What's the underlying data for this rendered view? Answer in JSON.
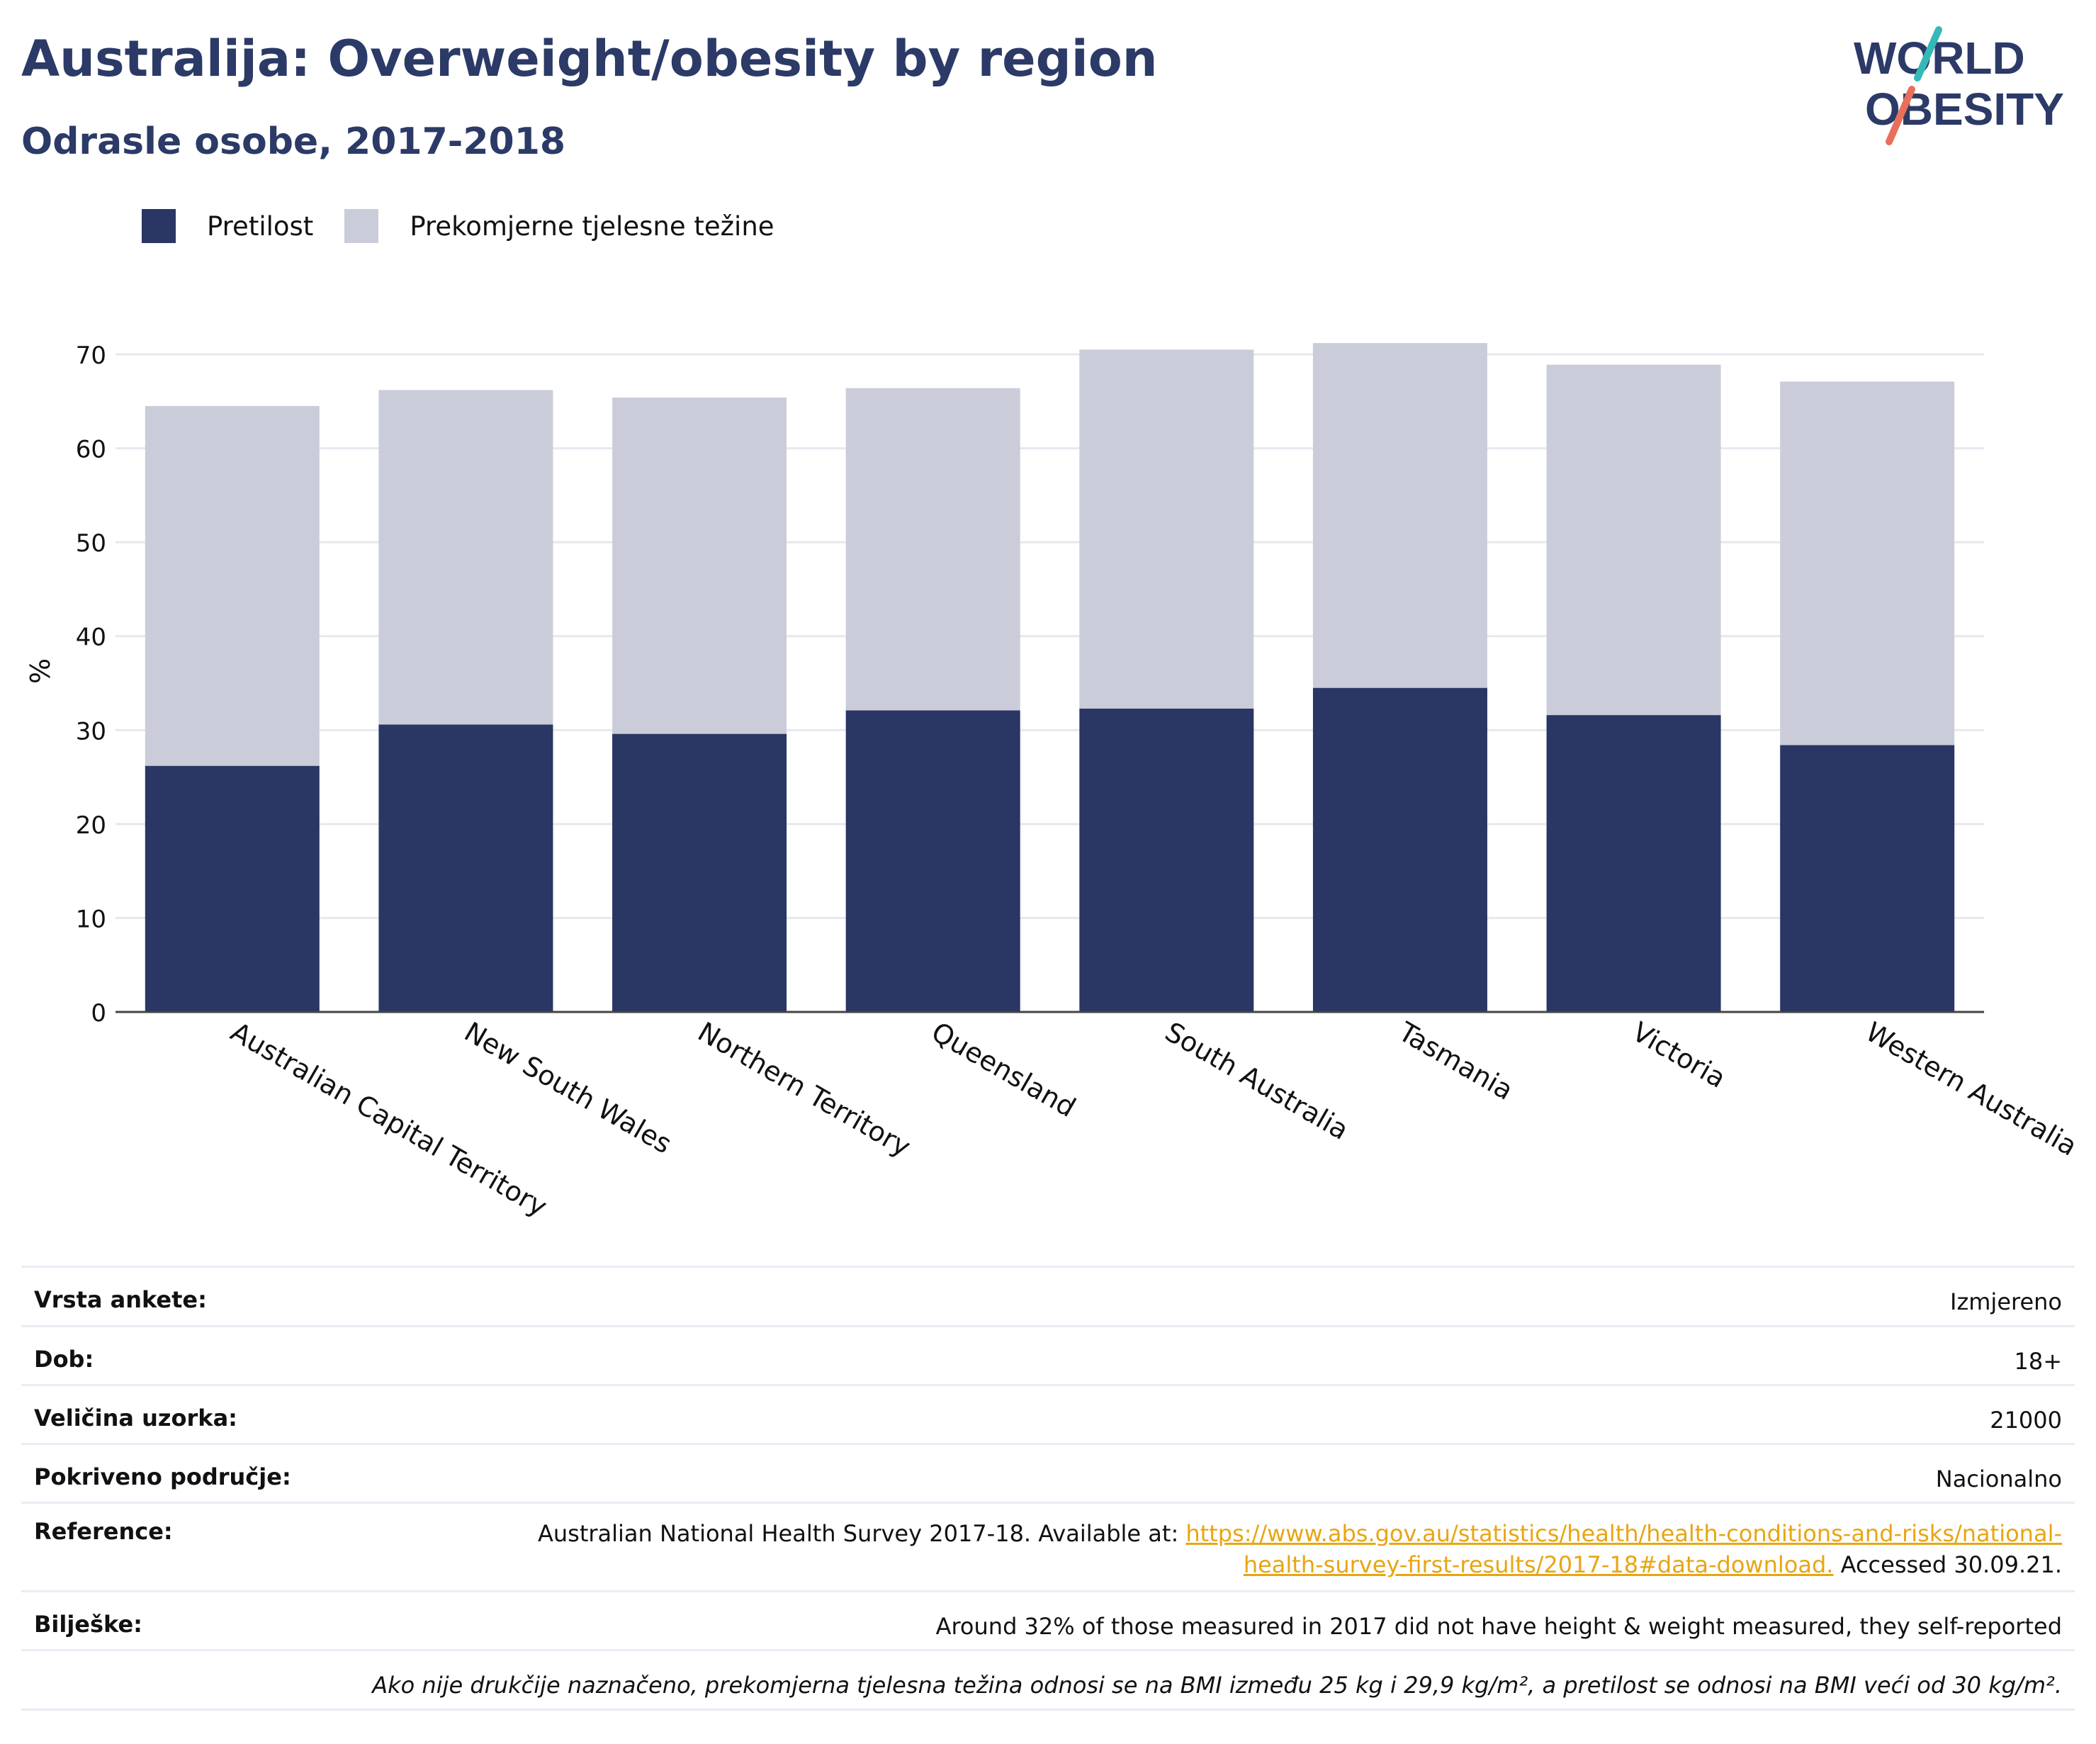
{
  "header": {
    "title": "Australija: Overweight/obesity by region",
    "subtitle": "Odrasle osobe, 2017-2018"
  },
  "logo": {
    "line1": "WORLD",
    "line2": "OBESITY"
  },
  "colors": {
    "obesity": "#2a3663",
    "overweight": "#cacdd9",
    "title": "#2b3a67",
    "link": "#e8a513"
  },
  "chart_data": {
    "type": "bar",
    "stacked": true,
    "categories": [
      "Australian Capital Territory",
      "New South Wales",
      "Northern Territory",
      "Queensland",
      "South Australia",
      "Tasmania",
      "Victoria",
      "Western Australia"
    ],
    "series": [
      {
        "name": "Pretilost",
        "values": [
          26.2,
          30.6,
          29.6,
          32.1,
          32.3,
          34.5,
          31.6,
          28.4
        ]
      },
      {
        "name": "Prekomjerne tjelesne težine",
        "values": [
          38.3,
          35.6,
          35.8,
          34.3,
          38.2,
          36.7,
          37.3,
          38.7
        ]
      }
    ],
    "ylabel": "%",
    "xlabel": "",
    "ylim": [
      0,
      70
    ],
    "yticks": [
      0,
      10,
      20,
      30,
      40,
      50,
      60,
      70
    ],
    "grid": true,
    "legend": "top-left"
  },
  "info": {
    "survey_type": {
      "label": "Vrsta ankete:",
      "value": "Izmjereno"
    },
    "age": {
      "label": "Dob:",
      "value": "18+"
    },
    "sample_size": {
      "label": "Veličina uzorka:",
      "value": "21000"
    },
    "area": {
      "label": "Pokriveno područje:",
      "value": "Nacionalno"
    },
    "reference": {
      "label": "Reference:",
      "text_before": "Australian National Health Survey 2017-18. Available at: ",
      "link_line1": "https://www.abs.gov.au/statistics/health/health-conditions-and-risks/national-",
      "link_line2": "health-survey-first-results/2017-18#data-download.",
      "text_after": " Accessed 30.09.21."
    },
    "notes": {
      "label": "Bilješke:",
      "value": "Around 32% of those measured in 2017 did not have height & weight measured, they self-reported"
    },
    "definition": "Ako nije drukčije naznačeno, prekomjerna tjelesna težina odnosi se na BMI između 25 kg i 29,9 kg/m², a pretilost se odnosi na BMI veći od 30 kg/m²."
  }
}
